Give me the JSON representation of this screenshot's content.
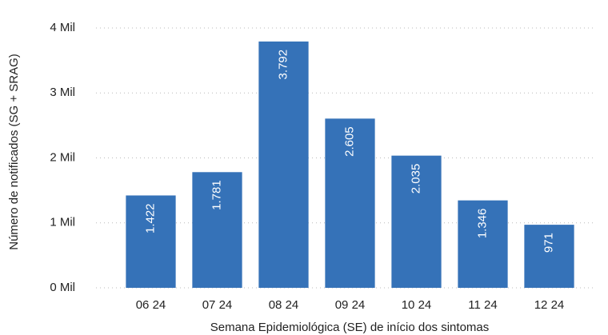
{
  "chart_data": {
    "type": "bar",
    "x_label": "Semana Epidemiológica (SE) de início dos sintomas",
    "y_label": "Número de notificados (SG + SRAG)",
    "categories": [
      "06 24",
      "07 24",
      "08 24",
      "09 24",
      "10 24",
      "11 24",
      "12 24"
    ],
    "values": [
      1422,
      1781,
      3792,
      2605,
      2035,
      1346,
      971
    ],
    "value_labels": [
      "1.422",
      "1.781",
      "3.792",
      "2.605",
      "2.035",
      "1.346",
      "971"
    ],
    "color": "#3572b8",
    "ylim": [
      0,
      4000
    ],
    "yticks": [
      {
        "value": 0,
        "label": "0 Mil"
      },
      {
        "value": 1000,
        "label": "1 Mil"
      },
      {
        "value": 2000,
        "label": "2 Mil"
      },
      {
        "value": 3000,
        "label": "3 Mil"
      },
      {
        "value": 4000,
        "label": "4 Mil"
      }
    ],
    "grid": true
  }
}
